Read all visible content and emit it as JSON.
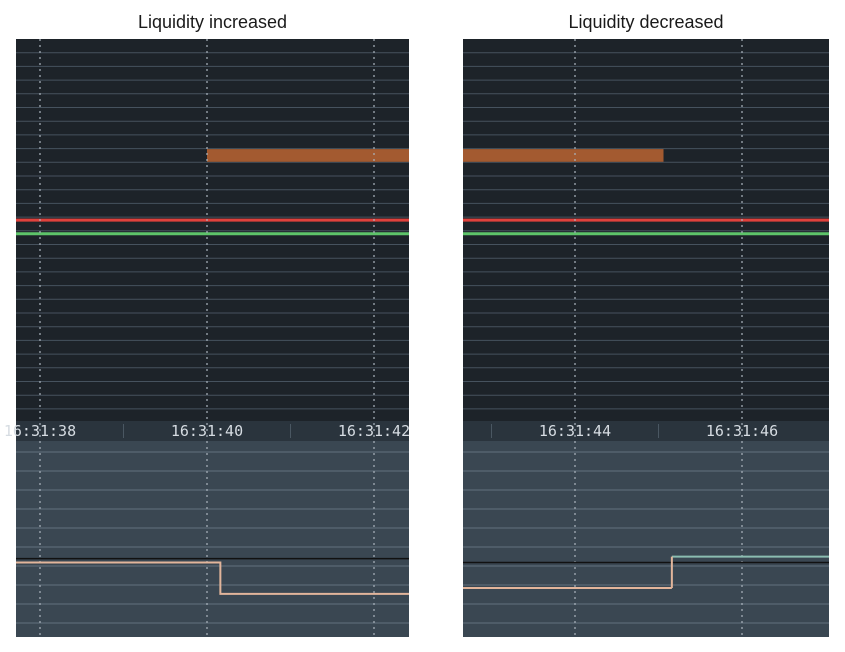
{
  "chart_data": [
    {
      "type": "line",
      "title": "Liquidity increased",
      "time_ticks": [
        "16:31:38",
        "16:31:40",
        "16:31:42"
      ],
      "level_bars": [
        {
          "color": "#a35a30",
          "from_tick": 1,
          "to": "end",
          "row": 8
        }
      ],
      "price_lines": [
        {
          "color": "#e0413c",
          "row": 13
        },
        {
          "color": "#5ec46a",
          "row": 14
        }
      ],
      "step_series": [
        {
          "color": "#e2b59b",
          "segments": [
            {
              "from": "start",
              "to_tick": 1.08,
              "level": 0.62
            },
            {
              "from_tick": 1.08,
              "to": "end",
              "level": 0.78
            }
          ]
        }
      ],
      "reference_line": {
        "color": "#111111",
        "level": 0.6
      }
    },
    {
      "type": "line",
      "title": "Liquidity decreased",
      "time_ticks": [
        "16:31:44",
        "16:31:46"
      ],
      "level_bars": [
        {
          "color": "#a35a30",
          "from": "start",
          "to_tick": 0.53,
          "row": 8
        }
      ],
      "price_lines": [
        {
          "color": "#e0413c",
          "row": 13
        },
        {
          "color": "#5ec46a",
          "row": 14
        }
      ],
      "step_series": [
        {
          "color": "#e2b59b",
          "segments": [
            {
              "from": "start",
              "to_tick": 0.58,
              "level": 0.75
            }
          ]
        },
        {
          "color": "#8bbdb1",
          "segments": [
            {
              "from_tick": 0.58,
              "to": "end",
              "level": 0.59
            }
          ]
        }
      ],
      "reference_line": {
        "color": "#111111",
        "level": 0.62
      }
    }
  ]
}
